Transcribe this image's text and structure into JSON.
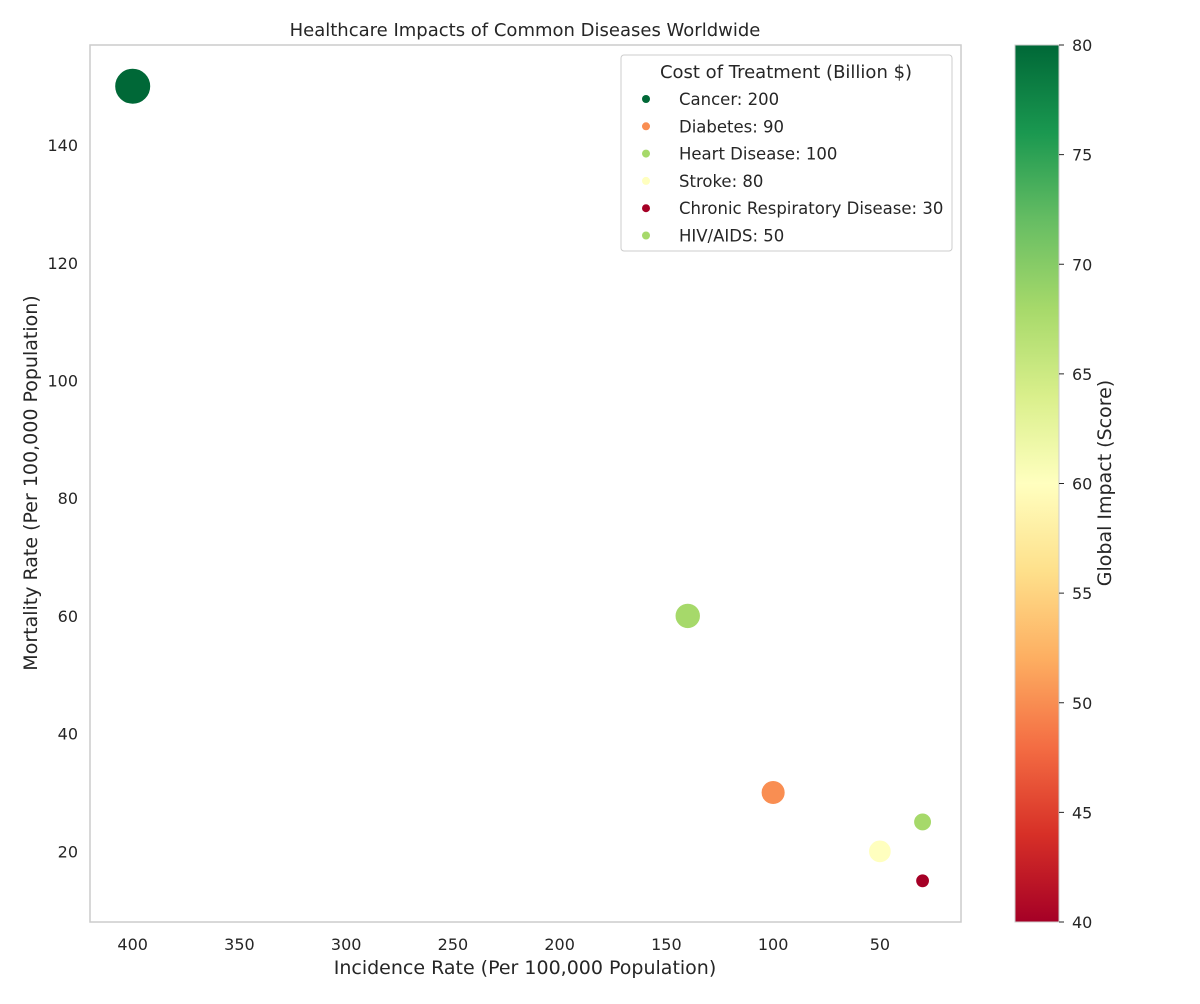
{
  "chart_data": {
    "type": "scatter",
    "title": "Healthcare Impacts of Common Diseases Worldwide",
    "xlabel": "Incidence Rate (Per 100,000 Population)",
    "ylabel": "Mortality Rate (Per 100,000 Population)",
    "xlim": [
      420,
      12
    ],
    "ylim": [
      8,
      157
    ],
    "x_reversed": true,
    "x_ticks": [
      400,
      350,
      300,
      250,
      200,
      150,
      100,
      50
    ],
    "y_ticks": [
      20,
      40,
      60,
      80,
      100,
      120,
      140
    ],
    "grid": false,
    "legend": {
      "title": "Cost of Treatment (Billion $)",
      "placement": "top-right"
    },
    "colorbar": {
      "label": "Global Impact (Score)",
      "min": 40,
      "max": 80,
      "ticks": [
        40,
        45,
        50,
        55,
        60,
        65,
        70,
        75,
        80
      ],
      "colormap": "RdYlGn"
    },
    "points": [
      {
        "name": "Cancer",
        "legend_label": "Cancer: 200",
        "x": 400,
        "y": 150,
        "cost": 200,
        "impact": 80
      },
      {
        "name": "Diabetes",
        "legend_label": "Diabetes: 90",
        "x": 100,
        "y": 30,
        "cost": 90,
        "impact": 50
      },
      {
        "name": "Heart Disease",
        "legend_label": "Heart Disease: 100",
        "x": 140,
        "y": 60,
        "cost": 100,
        "impact": 68
      },
      {
        "name": "Stroke",
        "legend_label": "Stroke: 80",
        "x": 50,
        "y": 20,
        "cost": 80,
        "impact": 60
      },
      {
        "name": "Chronic Respiratory Disease",
        "legend_label": "Chronic Respiratory Disease: 30",
        "x": 30,
        "y": 15,
        "cost": 30,
        "impact": 40
      },
      {
        "name": "HIV/AIDS",
        "legend_label": "HIV/AIDS: 50",
        "x": 30,
        "y": 25,
        "cost": 50,
        "impact": 68
      }
    ]
  }
}
